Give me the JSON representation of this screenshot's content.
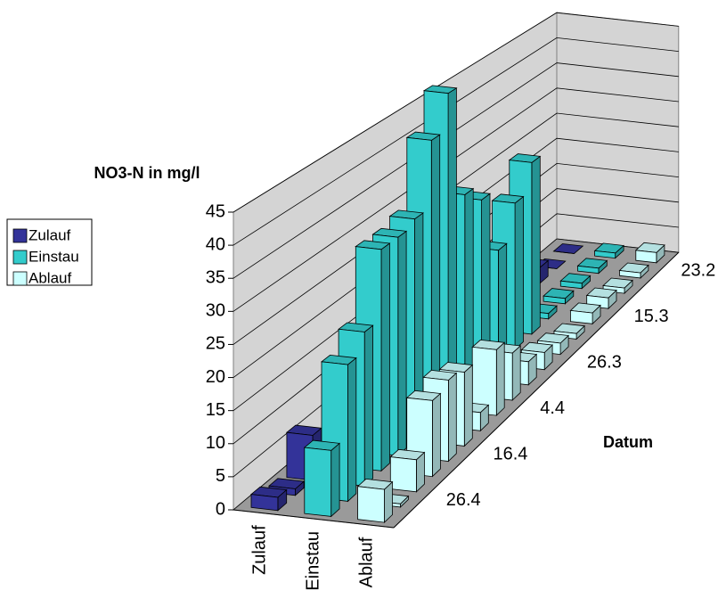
{
  "chart_data": {
    "type": "bar3d",
    "y_axis_label": "NO3-N in mg/l",
    "x_axis_label": "Datum",
    "categories": [
      null,
      "23.2",
      null,
      null,
      "15.3",
      null,
      null,
      "26.3",
      null,
      null,
      "4.4",
      null,
      null,
      "16.4",
      null,
      null,
      "26.4",
      null
    ],
    "series": [
      {
        "name": "Zulauf",
        "color": "#333399",
        "values": [
          0,
          0,
          3,
          0,
          0,
          0,
          0,
          2,
          0,
          0,
          0,
          0,
          0,
          0,
          0,
          7,
          1,
          2
        ]
      },
      {
        "name": "Einstau",
        "color": "#33cccc",
        "values": [
          1,
          1,
          1,
          1,
          1,
          31,
          26,
          20,
          31,
          34,
          53,
          47,
          36,
          35,
          35,
          24,
          21,
          10
        ]
      },
      {
        "name": "Ablauf",
        "color": "#ccffff",
        "values": [
          2,
          1,
          1,
          2,
          2,
          1,
          2,
          3,
          4,
          8,
          11,
          3,
          12,
          13,
          12,
          5,
          0.5,
          5
        ]
      }
    ],
    "ylim": [
      0,
      45
    ],
    "yticks": [
      0,
      5,
      10,
      15,
      20,
      25,
      30,
      35,
      40,
      45
    ],
    "grid": true
  }
}
